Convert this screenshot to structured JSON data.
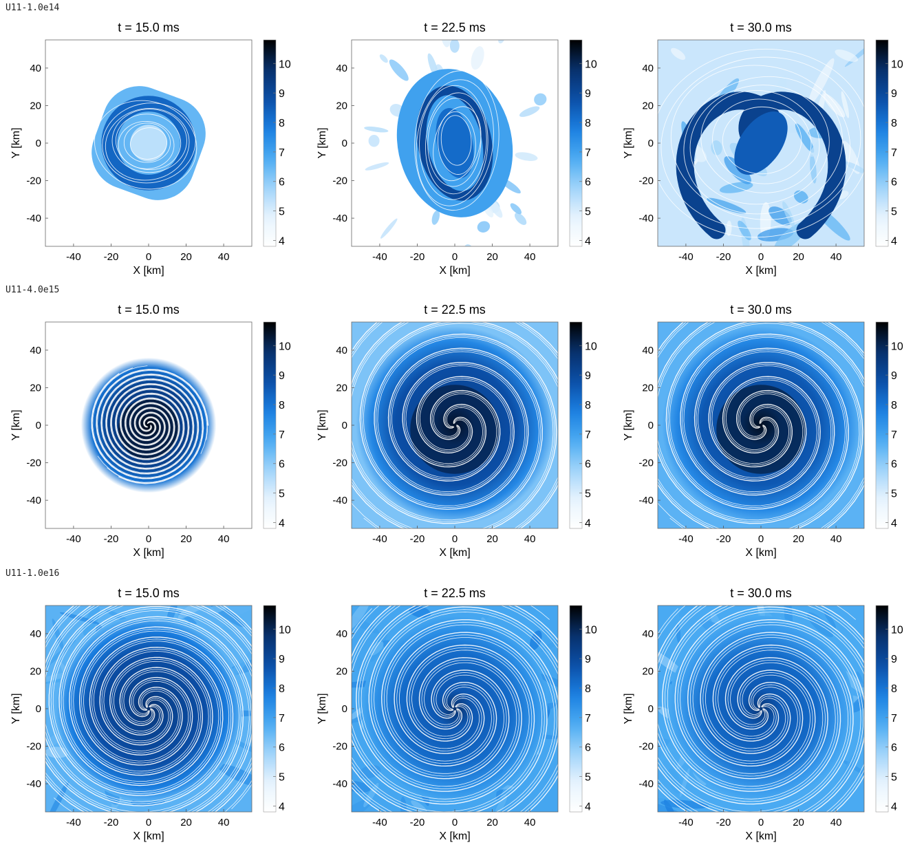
{
  "row_labels": [
    "U11-1.0e14",
    "U11-4.0e15",
    "U11-1.0e16"
  ],
  "colors": {
    "colormap": [
      "#ffffff",
      "#e6f3fd",
      "#9fd3fa",
      "#4aaaf2",
      "#1a7ee0",
      "#0b4ea6",
      "#08306b",
      "#000000"
    ],
    "streamline": "#ffffff"
  },
  "chart_data": [
    {
      "type": "heatmap",
      "row": 0,
      "col": 0,
      "model": "U11-1.0e14",
      "title": "t = 15.0 ms",
      "xlabel": "X [km]",
      "ylabel": "Y [km]",
      "xlim": [
        -55,
        55
      ],
      "ylim": [
        -55,
        55
      ],
      "xticks": [
        -40,
        -20,
        0,
        20,
        40
      ],
      "yticks": [
        40,
        20,
        0,
        -20,
        -40
      ],
      "colorbar_ticks": [
        10,
        9,
        8,
        7,
        6,
        5,
        4
      ],
      "colorbar_range": [
        3.8,
        10.8
      ],
      "pattern": "ring",
      "extent": 28,
      "spiral": false,
      "turns": 0,
      "dark_core": false,
      "center_value": 6.0,
      "ring_value": 8.3,
      "fill_value": 6.5,
      "outer_value": 3.9
    },
    {
      "type": "heatmap",
      "row": 0,
      "col": 1,
      "model": "U11-1.0e14",
      "title": "t = 22.5 ms",
      "xlabel": "X [km]",
      "ylabel": "Y [km]",
      "xlim": [
        -55,
        55
      ],
      "ylim": [
        -55,
        55
      ],
      "xticks": [
        -40,
        -20,
        0,
        20,
        40
      ],
      "yticks": [
        40,
        20,
        0,
        -20,
        -40
      ],
      "colorbar_ticks": [
        10,
        9,
        8,
        7,
        6,
        5,
        4
      ],
      "colorbar_range": [
        3.8,
        10.8
      ],
      "pattern": "oval",
      "extent": 38,
      "spiral": false,
      "turns": 0,
      "dark_core": false,
      "center_value": 8.2,
      "ring_value": 9.0,
      "fill_value": 7.0,
      "outer_value": 3.9
    },
    {
      "type": "heatmap",
      "row": 0,
      "col": 2,
      "model": "U11-1.0e14",
      "title": "t = 30.0 ms",
      "xlabel": "X [km]",
      "ylabel": "Y [km]",
      "xlim": [
        -55,
        55
      ],
      "ylim": [
        -55,
        55
      ],
      "xticks": [
        -40,
        -20,
        0,
        20,
        40
      ],
      "yticks": [
        40,
        20,
        0,
        -20,
        -40
      ],
      "colorbar_ticks": [
        10,
        9,
        8,
        7,
        6,
        5,
        4
      ],
      "colorbar_range": [
        3.8,
        10.8
      ],
      "pattern": "s-arm",
      "extent": 60,
      "spiral": false,
      "turns": 0,
      "dark_core": false,
      "center_value": 8.5,
      "ring_value": 9.2,
      "fill_value": 6.0,
      "outer_value": 5.2
    },
    {
      "type": "heatmap",
      "row": 1,
      "col": 0,
      "model": "U11-4.0e15",
      "title": "t = 15.0 ms",
      "xlabel": "X [km]",
      "ylabel": "Y [km]",
      "xlim": [
        -55,
        55
      ],
      "ylim": [
        -55,
        55
      ],
      "xticks": [
        -40,
        -20,
        0,
        20,
        40
      ],
      "yticks": [
        40,
        20,
        0,
        -20,
        -40
      ],
      "colorbar_ticks": [
        10,
        9,
        8,
        7,
        6,
        5,
        4
      ],
      "colorbar_range": [
        3.8,
        10.8
      ],
      "pattern": "disk",
      "extent": 36,
      "spiral": true,
      "turns": 4,
      "dark_core": true,
      "center_value": 10.6,
      "ring_value": 9.6,
      "fill_value": 8.0,
      "outer_value": 3.9
    },
    {
      "type": "heatmap",
      "row": 1,
      "col": 1,
      "model": "U11-4.0e15",
      "title": "t = 22.5 ms",
      "xlabel": "X [km]",
      "ylabel": "Y [km]",
      "xlim": [
        -55,
        55
      ],
      "ylim": [
        -55,
        55
      ],
      "xticks": [
        -40,
        -20,
        0,
        20,
        40
      ],
      "yticks": [
        40,
        20,
        0,
        -20,
        -40
      ],
      "colorbar_ticks": [
        10,
        9,
        8,
        7,
        6,
        5,
        4
      ],
      "colorbar_range": [
        3.8,
        10.8
      ],
      "pattern": "disk",
      "extent": 62,
      "spiral": true,
      "turns": 3,
      "dark_core": true,
      "center_value": 10.4,
      "ring_value": 9.2,
      "fill_value": 7.6,
      "outer_value": 6.2
    },
    {
      "type": "heatmap",
      "row": 1,
      "col": 2,
      "model": "U11-4.0e15",
      "title": "t = 30.0 ms",
      "xlabel": "X [km]",
      "ylabel": "Y [km]",
      "xlim": [
        -55,
        55
      ],
      "ylim": [
        -55,
        55
      ],
      "xticks": [
        -40,
        -20,
        0,
        20,
        40
      ],
      "yticks": [
        40,
        20,
        0,
        -20,
        -40
      ],
      "colorbar_ticks": [
        10,
        9,
        8,
        7,
        6,
        5,
        4
      ],
      "colorbar_range": [
        3.8,
        10.8
      ],
      "pattern": "disk",
      "extent": 62,
      "spiral": true,
      "turns": 3,
      "dark_core": true,
      "center_value": 10.5,
      "ring_value": 9.0,
      "fill_value": 7.6,
      "outer_value": 6.6
    },
    {
      "type": "heatmap",
      "row": 2,
      "col": 0,
      "model": "U11-1.0e16",
      "title": "t = 15.0 ms",
      "xlabel": "X [km]",
      "ylabel": "Y [km]",
      "xlim": [
        -55,
        55
      ],
      "ylim": [
        -55,
        55
      ],
      "xticks": [
        -40,
        -20,
        0,
        20,
        40
      ],
      "yticks": [
        40,
        20,
        0,
        -20,
        -40
      ],
      "colorbar_ticks": [
        10,
        9,
        8,
        7,
        6,
        5,
        4
      ],
      "colorbar_range": [
        3.8,
        10.8
      ],
      "pattern": "full",
      "extent": 70,
      "spiral": true,
      "turns": 2.5,
      "dark_core": false,
      "center_value": 9.8,
      "ring_value": 9.2,
      "fill_value": 7.8,
      "outer_value": 6.6
    },
    {
      "type": "heatmap",
      "row": 2,
      "col": 1,
      "model": "U11-1.0e16",
      "title": "t = 22.5 ms",
      "xlabel": "X [km]",
      "ylabel": "Y [km]",
      "xlim": [
        -55,
        55
      ],
      "ylim": [
        -55,
        55
      ],
      "xticks": [
        -40,
        -20,
        0,
        20,
        40
      ],
      "yticks": [
        40,
        20,
        0,
        -20,
        -40
      ],
      "colorbar_ticks": [
        10,
        9,
        8,
        7,
        6,
        5,
        4
      ],
      "colorbar_range": [
        3.8,
        10.8
      ],
      "pattern": "full",
      "extent": 70,
      "spiral": true,
      "turns": 2,
      "dark_core": false,
      "center_value": 9.8,
      "ring_value": 8.6,
      "fill_value": 7.4,
      "outer_value": 6.9
    },
    {
      "type": "heatmap",
      "row": 2,
      "col": 2,
      "model": "U11-1.0e16",
      "title": "t = 30.0 ms",
      "xlabel": "X [km]",
      "ylabel": "Y [km]",
      "xlim": [
        -55,
        55
      ],
      "ylim": [
        -55,
        55
      ],
      "xticks": [
        -40,
        -20,
        0,
        20,
        40
      ],
      "yticks": [
        40,
        20,
        0,
        -20,
        -40
      ],
      "colorbar_ticks": [
        10,
        9,
        8,
        7,
        6,
        5,
        4
      ],
      "colorbar_range": [
        3.8,
        10.8
      ],
      "pattern": "full",
      "extent": 70,
      "spiral": true,
      "turns": 2,
      "dark_core": false,
      "center_value": 9.6,
      "ring_value": 8.6,
      "fill_value": 7.2,
      "outer_value": 6.8
    }
  ]
}
